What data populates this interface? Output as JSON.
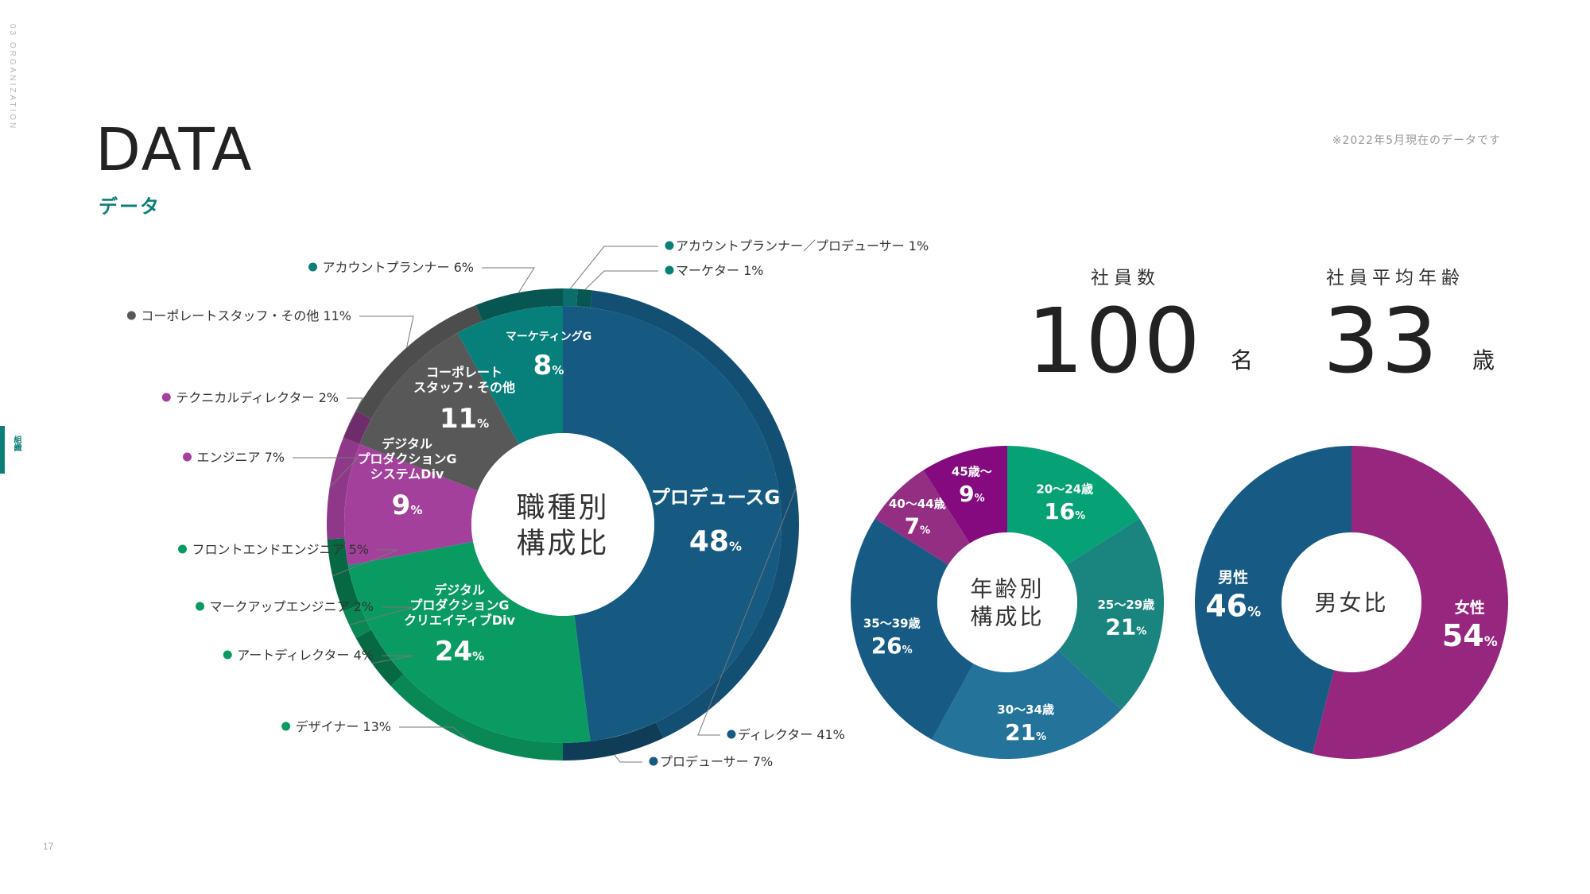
{
  "side": {
    "section": "03 ORGANIZATION",
    "label": "組織",
    "page": "17"
  },
  "header": {
    "title": "DATA",
    "subtitle": "データ",
    "note": "※2022年5月現在のデータです"
  },
  "stats": {
    "employees": {
      "label": "社員数",
      "value": "100",
      "unit": "名"
    },
    "avg_age": {
      "label": "社員平均年齢",
      "value": "33",
      "unit": "歳"
    }
  },
  "chart_data": [
    {
      "type": "pie",
      "variant": "donut-two-level",
      "center_label": [
        "職種別",
        "構成比"
      ],
      "groups": [
        {
          "name": "プロデュースG",
          "value": 48,
          "color": "#165a82"
        },
        {
          "name": "デジタルプロダクションGクリエイティブDiv",
          "lines": [
            "デジタル",
            "プロダクションG",
            "クリエイティブDiv"
          ],
          "value": 24,
          "color": "#0a9b62"
        },
        {
          "name": "デジタルプロダクションGシステムDiv",
          "lines": [
            "デジタル",
            "プロダクションG",
            "システムDiv"
          ],
          "value": 9,
          "color": "#a3409c"
        },
        {
          "name": "コーポレートスタッフ・その他",
          "lines": [
            "コーポレート",
            "スタッフ・その他"
          ],
          "value": 11,
          "color": "#585858"
        },
        {
          "name": "マーケティングG",
          "value": 8,
          "color": "#077f7b"
        }
      ],
      "roles": [
        {
          "label": "アカウントプランナー／プロデューサー",
          "value": 1,
          "color": "#0b7e78"
        },
        {
          "label": "マーケター",
          "value": 1,
          "color": "#0b7e78"
        },
        {
          "label": "ディレクター",
          "value": 41,
          "color": "#165a82"
        },
        {
          "label": "プロデューサー",
          "value": 7,
          "color": "#165a82"
        },
        {
          "label": "デザイナー",
          "value": 13,
          "color": "#0a9b62"
        },
        {
          "label": "アートディレクター",
          "value": 4,
          "color": "#0a9b62"
        },
        {
          "label": "マークアップエンジニア",
          "value": 2,
          "color": "#0a9b62"
        },
        {
          "label": "フロントエンドエンジニア",
          "value": 5,
          "color": "#0a9b62"
        },
        {
          "label": "エンジニア",
          "value": 7,
          "color": "#a3409c"
        },
        {
          "label": "テクニカルディレクター",
          "value": 2,
          "color": "#a3409c"
        },
        {
          "label": "コーポレートスタッフ・その他",
          "value": 11,
          "color": "#585858"
        },
        {
          "label": "アカウントプランナー",
          "value": 6,
          "color": "#0b7e78"
        }
      ],
      "unit": "%"
    },
    {
      "type": "pie",
      "variant": "donut",
      "center_label": [
        "年齢別",
        "構成比"
      ],
      "slices": [
        {
          "label": "20～24歳",
          "value": 16,
          "color": "#06a276"
        },
        {
          "label": "25～29歳",
          "value": 21,
          "color": "#1a857e"
        },
        {
          "label": "30～34歳",
          "value": 21,
          "color": "#23739a"
        },
        {
          "label": "35～39歳",
          "value": 26,
          "color": "#175b85"
        },
        {
          "label": "40～44歳",
          "value": 7,
          "color": "#932e83"
        },
        {
          "label": "45歳～",
          "value": 9,
          "color": "#850a7f"
        }
      ],
      "unit": "%"
    },
    {
      "type": "pie",
      "variant": "donut",
      "center_label": [
        "男女比"
      ],
      "slices": [
        {
          "label": "女性",
          "value": 54,
          "color": "#97277e"
        },
        {
          "label": "男性",
          "value": 46,
          "color": "#175b84"
        }
      ],
      "unit": "%"
    }
  ]
}
